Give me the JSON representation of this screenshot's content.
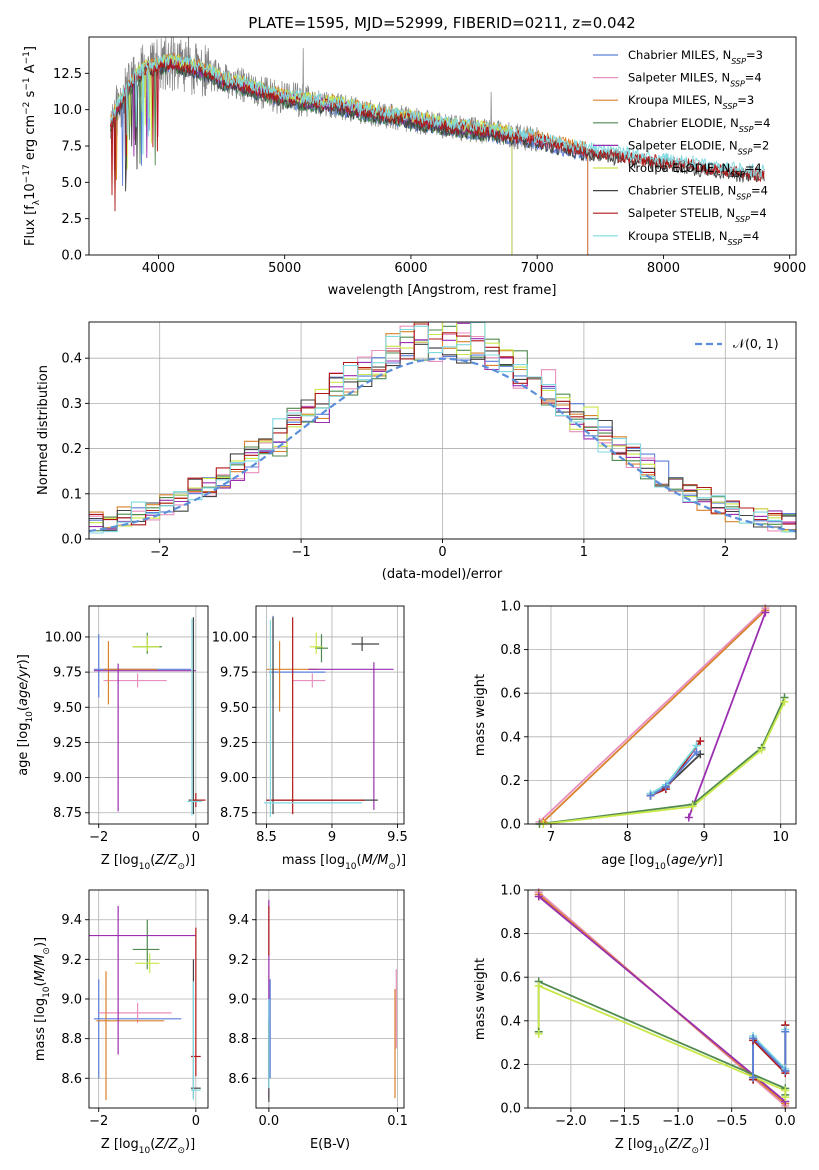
{
  "figure": {
    "title": "PLATE=1595, MJD=52999, FIBERID=0211, z=0.042"
  },
  "colors": {
    "Chabrier MILES": "#5b7fd9",
    "Salpeter MILES": "#e88fbf",
    "Kroupa MILES": "#d9822b",
    "Chabrier ELODIE": "#4f8a4f",
    "Salpeter ELODIE": "#9b2fb0",
    "Kroupa ELODIE": "#c9e84a",
    "Chabrier STELIB": "#444444",
    "Salpeter STELIB": "#b01818",
    "Kroupa STELIB": "#7fd9e0",
    "data": "#808080"
  },
  "chart_data": [
    {
      "id": "spectrum",
      "type": "line",
      "title": "PLATE=1595, MJD=52999, FIBERID=0211, z=0.042",
      "xlabel": "wavelength [Angstrom, rest frame]",
      "ylabel": "Flux [f_λ10^-17 erg cm^-2 s^-1 A^-1]",
      "xlim": [
        3450,
        9050
      ],
      "ylim": [
        0,
        15
      ],
      "xticks": [
        4000,
        5000,
        6000,
        7000,
        8000,
        9000
      ],
      "yticks": [
        0.0,
        2.5,
        5.0,
        7.5,
        10.0,
        12.5
      ],
      "ytick_labels": [
        "0.0",
        "2.5",
        "5.0",
        "7.5",
        "10.0",
        "12.5"
      ],
      "grid": false,
      "legend": "right",
      "legend_entries": [
        {
          "label": "Chabrier MILES, N",
          "sub": "SSP",
          "suffix": "=3"
        },
        {
          "label": "Salpeter MILES, N",
          "sub": "SSP",
          "suffix": "=4"
        },
        {
          "label": "Kroupa MILES, N",
          "sub": "SSP",
          "suffix": "=3"
        },
        {
          "label": "Chabrier ELODIE, N",
          "sub": "SSP",
          "suffix": "=4"
        },
        {
          "label": "Salpeter ELODIE, N",
          "sub": "SSP",
          "suffix": "=2"
        },
        {
          "label": "Kroupa ELODIE, N",
          "sub": "SSP",
          "suffix": "=4"
        },
        {
          "label": "Chabrier STELIB, N",
          "sub": "SSP",
          "suffix": "=4"
        },
        {
          "label": "Salpeter STELIB, N",
          "sub": "SSP",
          "suffix": "=4"
        },
        {
          "label": "Kroupa STELIB, N",
          "sub": "SSP",
          "suffix": "=4"
        }
      ],
      "continuum": {
        "x": [
          3620,
          3700,
          3800,
          3900,
          4000,
          4100,
          4200,
          4300,
          4400,
          4500,
          4600,
          4700,
          4800,
          4900,
          5000,
          5200,
          5400,
          5600,
          5800,
          6000,
          6200,
          6400,
          6600,
          6800,
          7000,
          7200,
          7400,
          7600,
          7800,
          8000,
          8200,
          8400,
          8600,
          8800
        ],
        "y": [
          9.0,
          10.5,
          12.0,
          12.8,
          13.0,
          13.2,
          13.0,
          12.8,
          12.5,
          12.0,
          11.8,
          11.6,
          11.3,
          11.0,
          10.8,
          10.5,
          10.3,
          9.9,
          9.6,
          9.3,
          9.0,
          8.7,
          8.5,
          8.2,
          7.9,
          7.5,
          7.1,
          6.9,
          6.6,
          6.4,
          6.2,
          5.9,
          5.7,
          5.5
        ]
      },
      "model_end_wavelength": {
        "Chabrier MILES": 7400,
        "Salpeter MILES": 7400,
        "Kroupa MILES": 7400,
        "Chabrier ELODIE": 6800,
        "Salpeter ELODIE": 6800,
        "Kroupa ELODIE": 6800,
        "Chabrier STELIB": 8800,
        "Salpeter STELIB": 8800,
        "Kroupa STELIB": 8800
      },
      "data_end_wavelength": 8800
    },
    {
      "id": "residuals",
      "type": "area",
      "xlabel": "(data-model)/error",
      "ylabel": "Normed distribution",
      "xlim": [
        -2.5,
        2.5
      ],
      "ylim": [
        0,
        0.48
      ],
      "xticks": [
        -2,
        -1,
        0,
        1,
        2
      ],
      "yticks": [
        0.0,
        0.1,
        0.2,
        0.3,
        0.4
      ],
      "ytick_labels": [
        "0.0",
        "0.1",
        "0.2",
        "0.3",
        "0.4"
      ],
      "grid": true,
      "legend": "top-right",
      "legend_label": "𝒩(0, 1)",
      "bin_width": 0.1
    },
    {
      "id": "age_vs_Z",
      "type": "scatter",
      "xlabel": "Z [log10(Z/Z_sun)]",
      "ylabel": "age  [log10(age/yr)]",
      "xlim": [
        -2.2,
        0.25
      ],
      "ylim": [
        8.67,
        10.22
      ],
      "xticks": [
        -2,
        0
      ],
      "yticks": [
        8.75,
        9.0,
        9.25,
        9.5,
        9.75,
        10.0
      ],
      "ytick_labels": [
        "8.75",
        "9.00",
        "9.25",
        "9.50",
        "9.75",
        "10.00"
      ],
      "grid": true
    },
    {
      "id": "age_vs_mass",
      "type": "scatter",
      "xlabel": "mass [log10(M/M_sun)]",
      "ylabel": "",
      "xlim": [
        8.42,
        9.55
      ],
      "ylim": [
        8.67,
        10.22
      ],
      "xticks": [
        8.5,
        9.0,
        9.5
      ],
      "yticks": [
        8.75,
        9.0,
        9.25,
        9.5,
        9.75,
        10.0
      ],
      "ytick_labels": [
        "8.75",
        "9.00",
        "9.25",
        "9.50",
        "9.75",
        "10.00"
      ],
      "grid": true
    },
    {
      "id": "weight_vs_age",
      "type": "line",
      "xlabel": "age  [log10(age/yr)]",
      "ylabel": "mass weight",
      "xlim": [
        6.7,
        10.2
      ],
      "ylim": [
        0,
        1
      ],
      "xticks": [
        7,
        8,
        9,
        10
      ],
      "yticks": [
        0.0,
        0.2,
        0.4,
        0.6,
        0.8,
        1.0
      ],
      "ytick_labels": [
        "0.0",
        "0.2",
        "0.4",
        "0.6",
        "0.8",
        "1.0"
      ],
      "grid": true,
      "series": [
        {
          "key": "Salpeter MILES",
          "x": [
            6.85,
            9.8
          ],
          "y": [
            0.01,
            0.99
          ]
        },
        {
          "key": "Kroupa MILES",
          "x": [
            6.9,
            9.8
          ],
          "y": [
            0.01,
            0.98
          ]
        },
        {
          "key": "Salpeter ELODIE",
          "x": [
            8.8,
            9.8
          ],
          "y": [
            0.03,
            0.97
          ]
        },
        {
          "key": "Chabrier ELODIE",
          "x": [
            6.85,
            8.85,
            9.75,
            10.05
          ],
          "y": [
            0.0,
            0.09,
            0.35,
            0.58
          ]
        },
        {
          "key": "Kroupa ELODIE",
          "x": [
            6.9,
            8.85,
            9.75,
            10.05
          ],
          "y": [
            0.0,
            0.08,
            0.34,
            0.56
          ]
        },
        {
          "key": "Chabrier STELIB",
          "x": [
            8.3,
            8.5,
            8.95
          ],
          "y": [
            0.13,
            0.17,
            0.32
          ]
        },
        {
          "key": "Salpeter STELIB",
          "x": [
            8.3,
            8.5,
            8.95
          ],
          "y": [
            0.13,
            0.16,
            0.38
          ]
        },
        {
          "key": "Kroupa STELIB",
          "x": [
            8.3,
            8.5,
            8.9
          ],
          "y": [
            0.14,
            0.18,
            0.36
          ]
        },
        {
          "key": "Chabrier MILES",
          "x": [
            8.3,
            8.5,
            8.9
          ],
          "y": [
            0.13,
            0.17,
            0.33
          ]
        }
      ]
    },
    {
      "id": "mass_vs_Z",
      "type": "scatter",
      "xlabel": "Z [log10(Z/Z_sun)]",
      "ylabel": "mass [log10(M/M_sun)]",
      "xlim": [
        -2.2,
        0.25
      ],
      "ylim": [
        8.45,
        9.55
      ],
      "xticks": [
        -2,
        0
      ],
      "yticks": [
        8.6,
        8.8,
        9.0,
        9.2,
        9.4
      ],
      "ytick_labels": [
        "8.6",
        "8.8",
        "9.0",
        "9.2",
        "9.4"
      ],
      "grid": true
    },
    {
      "id": "mass_vs_EBV",
      "type": "scatter",
      "xlabel": "E(B-V)",
      "ylabel": "",
      "xlim": [
        -0.01,
        0.105
      ],
      "ylim": [
        8.45,
        9.55
      ],
      "xticks": [
        0.0,
        0.1
      ],
      "xtick_labels": [
        "0.0",
        "0.1"
      ],
      "yticks": [
        8.6,
        8.8,
        9.0,
        9.2,
        9.4
      ],
      "ytick_labels": [
        "8.6",
        "8.8",
        "9.0",
        "9.2",
        "9.4"
      ],
      "grid": true
    },
    {
      "id": "weight_vs_Z",
      "type": "line",
      "xlabel": "Z [log10(Z/Z_sun)]",
      "ylabel": "mass weight",
      "xlim": [
        -2.4,
        0.1
      ],
      "ylim": [
        0,
        1
      ],
      "xticks": [
        -2.0,
        -1.5,
        -1.0,
        -0.5,
        0.0
      ],
      "xtick_labels": [
        "−2.0",
        "−1.5",
        "−1.0",
        "−0.5",
        "0.0"
      ],
      "yticks": [
        0.0,
        0.2,
        0.4,
        0.6,
        0.8,
        1.0
      ],
      "ytick_labels": [
        "0.0",
        "0.2",
        "0.4",
        "0.6",
        "0.8",
        "1.0"
      ],
      "grid": true,
      "series": [
        {
          "key": "Salpeter MILES",
          "x": [
            -2.3,
            0.0
          ],
          "y": [
            0.99,
            0.01
          ]
        },
        {
          "key": "Kroupa MILES",
          "x": [
            -2.3,
            0.0
          ],
          "y": [
            0.98,
            0.02
          ]
        },
        {
          "key": "Salpeter ELODIE",
          "x": [
            -2.3,
            0.0
          ],
          "y": [
            0.97,
            0.03
          ]
        },
        {
          "key": "Chabrier ELODIE",
          "x": [
            -2.3,
            -2.3,
            0.0,
            0.0
          ],
          "y": [
            0.35,
            0.58,
            0.09,
            0.06
          ]
        },
        {
          "key": "Kroupa ELODIE",
          "x": [
            -2.3,
            -2.3,
            0.0,
            0.0
          ],
          "y": [
            0.34,
            0.56,
            0.08,
            0.05
          ]
        },
        {
          "key": "Chabrier STELIB",
          "x": [
            -0.3,
            -0.3,
            0.0,
            0.0
          ],
          "y": [
            0.13,
            0.32,
            0.17,
            0.38
          ]
        },
        {
          "key": "Salpeter STELIB",
          "x": [
            -0.3,
            -0.3,
            0.0,
            0.0
          ],
          "y": [
            0.13,
            0.31,
            0.16,
            0.38
          ]
        },
        {
          "key": "Kroupa STELIB",
          "x": [
            -0.3,
            -0.3,
            0.0,
            0.0
          ],
          "y": [
            0.14,
            0.33,
            0.18,
            0.36
          ]
        },
        {
          "key": "Chabrier MILES",
          "x": [
            -0.3,
            -0.3,
            0.0,
            0.0
          ],
          "y": [
            0.14,
            0.32,
            0.17,
            0.35
          ]
        }
      ]
    }
  ]
}
